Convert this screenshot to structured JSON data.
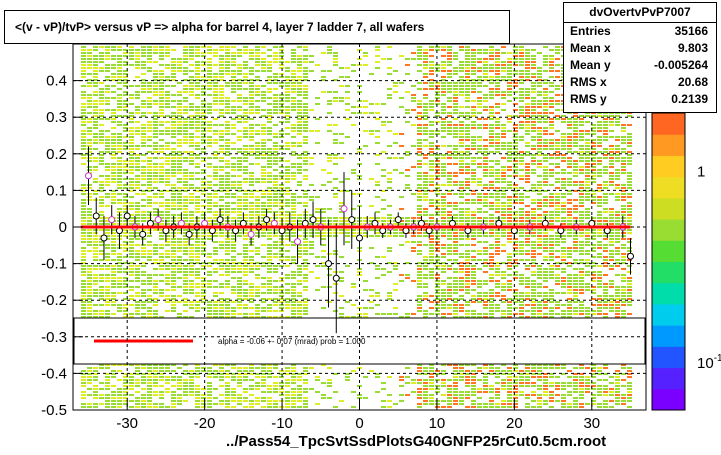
{
  "title": "<(v - vP)/tvP> versus   vP => alpha for barrel 4, layer 7 ladder 7, all wafers",
  "footer": "../Pass54_TpcSvtSsdPlotsG40GNFP25rCut0.5cm.root",
  "stats": {
    "name": "dvOvertvPvP7007",
    "rows": [
      {
        "label": "Entries",
        "value": "35166"
      },
      {
        "label": "Mean x",
        "value": "9.803"
      },
      {
        "label": "Mean y",
        "value": "-0.005264"
      },
      {
        "label": "RMS x",
        "value": "20.68"
      },
      {
        "label": "RMS y",
        "value": "0.2139"
      }
    ]
  },
  "legend": {
    "fit_label": "alpha =    -0.06 +-  0.07 (mrad) prob = 1.000",
    "fit_color": "#ff0000"
  },
  "chart_data": {
    "type": "heatmap",
    "title": "<(v - vP)/tvP> versus   vP => alpha for barrel 4, layer 7 ladder 7, all wafers",
    "xlabel": "",
    "ylabel": "",
    "xlim": [
      -37,
      37
    ],
    "ylim": [
      -0.5,
      0.5
    ],
    "x_ticks": [
      -30,
      -20,
      -10,
      0,
      10,
      20,
      30
    ],
    "y_ticks": [
      -0.5,
      -0.4,
      -0.3,
      -0.2,
      -0.1,
      0,
      0.1,
      0.2,
      0.3,
      0.4
    ],
    "y_tick_labels": [
      "-0.5",
      "-0.4",
      "-0.3",
      "-0.2",
      "-0.1",
      "0",
      "0.1",
      "0.2",
      "0.3",
      "0.4"
    ],
    "grid": true,
    "colorbar": {
      "labels": [
        "1",
        "10"
      ],
      "label_values": [
        1,
        0.1
      ],
      "label_suffix": [
        "",
        "-1"
      ]
    },
    "colors": {
      "low": "#99dd33",
      "mid": "#ddee22",
      "high": "#ff7722"
    },
    "profile": {
      "x": [
        -35,
        -34,
        -33,
        -32,
        -31,
        -30,
        -29,
        -28,
        -27,
        -26,
        -25,
        -24,
        -23,
        -22,
        -21,
        -20,
        -19,
        -18,
        -17,
        -16,
        -15,
        -14,
        -13,
        -12,
        -11,
        -10,
        -9,
        -8,
        -7,
        -6,
        -5,
        -4,
        -3,
        -2,
        -1,
        0,
        1,
        2,
        3,
        4,
        5,
        6,
        7,
        8,
        9,
        10,
        12,
        14,
        16,
        18,
        20,
        22,
        24,
        26,
        28,
        30,
        32,
        34,
        35
      ],
      "y": [
        0.14,
        0.03,
        -0.03,
        0.02,
        -0.01,
        0.03,
        0.0,
        -0.02,
        0.01,
        0.02,
        -0.01,
        0.0,
        0.01,
        -0.02,
        0.0,
        0.01,
        -0.01,
        0.02,
        0.0,
        -0.01,
        0.01,
        -0.02,
        0.0,
        0.02,
        0.01,
        -0.01,
        0.0,
        -0.04,
        0.01,
        0.02,
        0.0,
        -0.1,
        -0.14,
        0.05,
        0.02,
        -0.03,
        0.0,
        0.01,
        -0.01,
        0.0,
        0.02,
        -0.01,
        0.0,
        0.01,
        -0.01,
        0.0,
        0.01,
        -0.01,
        0.0,
        0.01,
        -0.01,
        0.0,
        0.01,
        -0.01,
        0.0,
        0.01,
        -0.01,
        0.0,
        -0.08
      ],
      "yerr": [
        0.08,
        0.05,
        0.06,
        0.04,
        0.05,
        0.03,
        0.03,
        0.03,
        0.03,
        0.03,
        0.03,
        0.03,
        0.03,
        0.03,
        0.03,
        0.03,
        0.03,
        0.03,
        0.03,
        0.03,
        0.03,
        0.03,
        0.03,
        0.03,
        0.03,
        0.03,
        0.04,
        0.06,
        0.04,
        0.05,
        0.05,
        0.12,
        0.15,
        0.1,
        0.08,
        0.08,
        0.03,
        0.03,
        0.02,
        0.02,
        0.02,
        0.02,
        0.02,
        0.02,
        0.02,
        0.02,
        0.02,
        0.02,
        0.02,
        0.02,
        0.02,
        0.02,
        0.02,
        0.02,
        0.02,
        0.02,
        0.02,
        0.03,
        0.05
      ]
    },
    "fit": {
      "x": [
        -36,
        35
      ],
      "y": [
        0.0,
        0.0
      ]
    }
  }
}
